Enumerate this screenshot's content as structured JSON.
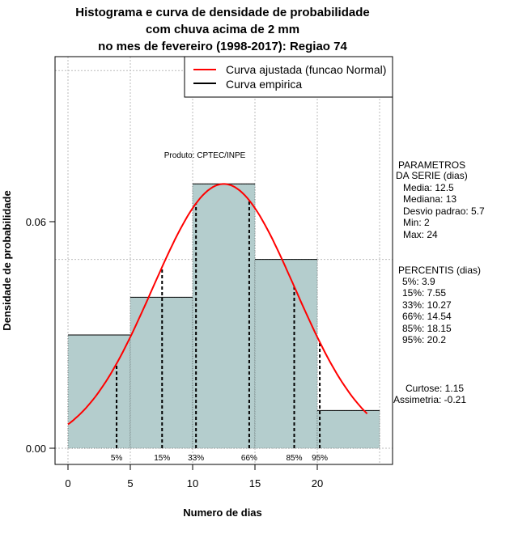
{
  "chart_data": {
    "type": "bar",
    "title": [
      "Histograma e curva de densidade de probabilidade",
      "com chuva acima de 2 mm",
      "no mes de fevereiro (1998-2017): Regiao 74"
    ],
    "xlabel": "Numero de dias",
    "ylabel": "Densidade de probabilidade",
    "xlim": [
      -1,
      26
    ],
    "ylim": [
      -0.004,
      0.104
    ],
    "x_ticks": [
      0,
      5,
      10,
      15,
      20
    ],
    "x_tick_labels": [
      "0",
      "5",
      "10",
      "15",
      "20"
    ],
    "y_ticks": [
      0.0,
      0.06
    ],
    "y_tick_labels": [
      "0.00",
      "0.06"
    ],
    "x_grid": [
      0,
      5,
      10,
      15,
      20,
      25
    ],
    "y_grid": [
      0,
      0.05,
      0.1
    ],
    "bins": [
      [
        0,
        5
      ],
      [
        5,
        10
      ],
      [
        10,
        15
      ],
      [
        15,
        20
      ],
      [
        20,
        25
      ]
    ],
    "values": [
      0.03,
      0.04,
      0.07,
      0.05,
      0.01
    ],
    "bar_color": "#b4cdcd",
    "normal_curve": {
      "mean": 12.5,
      "sd": 5.7,
      "x_from": 0,
      "x_to": 24,
      "color": "#ff0000"
    },
    "percentiles": [
      {
        "label": "5%",
        "value": 3.9
      },
      {
        "label": "15%",
        "value": 7.55
      },
      {
        "label": "33%",
        "value": 10.27
      },
      {
        "label": "66%",
        "value": 14.54
      },
      {
        "label": "85%",
        "value": 18.15
      },
      {
        "label": "95%",
        "value": 20.2
      }
    ],
    "legend": {
      "placement": "top-right",
      "entries": [
        {
          "label": "Curva ajustada (funcao Normal)",
          "color": "#ff0000"
        },
        {
          "label": "Curva empirica",
          "color": "#000000"
        }
      ]
    },
    "annotation": "Produto: CPTEC/INPE"
  },
  "side_panel": {
    "params_title": [
      "PARAMETROS",
      "DA SERIE (dias)"
    ],
    "params": [
      "Media: 12.5",
      "Mediana: 13",
      "Desvio padrao: 5.7",
      "Min: 2",
      "Max: 24"
    ],
    "percentis_title": "PERCENTIS (dias)",
    "percentis": [
      "5%: 3.9",
      "15%: 7.55",
      "33%: 10.27",
      "66%: 14.54",
      "85%: 18.15",
      "95%: 20.2"
    ],
    "curtose": "Curtose: 1.15",
    "assimetria": "Assimetria: -0.21"
  }
}
